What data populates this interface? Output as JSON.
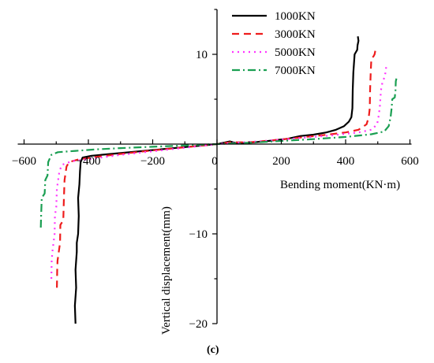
{
  "chart_data": {
    "type": "line",
    "title": "",
    "xlabel": "Bending moment(KN·m)",
    "ylabel": "Vertical displacement(mm)",
    "caption": "(c)",
    "xlim": [
      -600,
      600
    ],
    "ylim": [
      -20,
      15
    ],
    "xticks": [
      -600,
      -400,
      -200,
      0,
      200,
      400,
      600
    ],
    "yticks": [
      -20,
      -10,
      0,
      10
    ],
    "legend_position": "top-center",
    "series": [
      {
        "name": "1000KN",
        "color": "#000000",
        "dash": "",
        "points": [
          [
            -440,
            -20
          ],
          [
            -442,
            -18
          ],
          [
            -438,
            -16
          ],
          [
            -440,
            -14
          ],
          [
            -436,
            -12
          ],
          [
            -436,
            -11
          ],
          [
            -432,
            -10
          ],
          [
            -430,
            -8
          ],
          [
            -432,
            -6
          ],
          [
            -428,
            -4.5
          ],
          [
            -426,
            -3
          ],
          [
            -424,
            -2
          ],
          [
            -418,
            -1.5
          ],
          [
            -390,
            -1.3
          ],
          [
            -330,
            -1.1
          ],
          [
            -240,
            -0.8
          ],
          [
            -150,
            -0.5
          ],
          [
            -60,
            -0.2
          ],
          [
            0,
            0
          ],
          [
            20,
            0.15
          ],
          [
            40,
            0.3
          ],
          [
            60,
            0.1
          ],
          [
            100,
            0.15
          ],
          [
            160,
            0.35
          ],
          [
            220,
            0.6
          ],
          [
            260,
            0.9
          ],
          [
            300,
            1.05
          ],
          [
            340,
            1.3
          ],
          [
            370,
            1.6
          ],
          [
            395,
            2
          ],
          [
            410,
            2.5
          ],
          [
            418,
            3
          ],
          [
            421,
            4
          ],
          [
            422,
            6
          ],
          [
            424,
            8
          ],
          [
            428,
            10
          ],
          [
            436,
            10.5
          ],
          [
            437,
            11
          ],
          [
            440,
            11.5
          ],
          [
            438,
            12
          ]
        ]
      },
      {
        "name": "3000KN",
        "color": "#ee1c1c",
        "dash": "9,6",
        "points": [
          [
            -498,
            -16
          ],
          [
            -497,
            -14
          ],
          [
            -496,
            -13
          ],
          [
            -488,
            -11
          ],
          [
            -487,
            -9
          ],
          [
            -478,
            -8.5
          ],
          [
            -476,
            -6
          ],
          [
            -474,
            -4
          ],
          [
            -468,
            -2.5
          ],
          [
            -460,
            -2
          ],
          [
            -430,
            -1.7
          ],
          [
            -370,
            -1.4
          ],
          [
            -300,
            -1.1
          ],
          [
            -200,
            -0.7
          ],
          [
            -100,
            -0.35
          ],
          [
            0,
            0
          ],
          [
            40,
            0.2
          ],
          [
            100,
            0.2
          ],
          [
            180,
            0.45
          ],
          [
            250,
            0.7
          ],
          [
            330,
            1
          ],
          [
            400,
            1.3
          ],
          [
            440,
            1.6
          ],
          [
            465,
            2.2
          ],
          [
            472,
            3
          ],
          [
            475,
            4
          ],
          [
            476,
            6
          ],
          [
            478,
            8
          ],
          [
            480,
            9.5
          ],
          [
            487,
            9.8
          ],
          [
            490,
            10
          ],
          [
            494,
            10.7
          ]
        ]
      },
      {
        "name": "5000KN",
        "color": "#ff33ff",
        "dash": "2,5",
        "points": [
          [
            -515,
            -15
          ],
          [
            -514,
            -13
          ],
          [
            -512,
            -12
          ],
          [
            -505,
            -10
          ],
          [
            -504,
            -8
          ],
          [
            -500,
            -7
          ],
          [
            -498,
            -5
          ],
          [
            -494,
            -4
          ],
          [
            -490,
            -3
          ],
          [
            -482,
            -2.3
          ],
          [
            -450,
            -1.9
          ],
          [
            -380,
            -1.6
          ],
          [
            -300,
            -1.2
          ],
          [
            -200,
            -0.8
          ],
          [
            -100,
            -0.4
          ],
          [
            0,
            0
          ],
          [
            60,
            0.15
          ],
          [
            150,
            0.35
          ],
          [
            250,
            0.65
          ],
          [
            350,
            0.95
          ],
          [
            440,
            1.3
          ],
          [
            480,
            1.6
          ],
          [
            498,
            2.2
          ],
          [
            502,
            3
          ],
          [
            506,
            4
          ],
          [
            510,
            6
          ],
          [
            515,
            7
          ],
          [
            522,
            7.5
          ],
          [
            526,
            8.5
          ],
          [
            528,
            9
          ]
        ]
      },
      {
        "name": "7000KN",
        "color": "#1a9f52",
        "dash": "10,4,2,4",
        "points": [
          [
            -548,
            -9.3
          ],
          [
            -547,
            -8
          ],
          [
            -545,
            -6
          ],
          [
            -536,
            -5.5
          ],
          [
            -534,
            -4
          ],
          [
            -527,
            -3.5
          ],
          [
            -525,
            -2
          ],
          [
            -515,
            -1.2
          ],
          [
            -495,
            -0.9
          ],
          [
            -440,
            -0.75
          ],
          [
            -380,
            -0.6
          ],
          [
            -300,
            -0.45
          ],
          [
            -200,
            -0.3
          ],
          [
            -100,
            -0.15
          ],
          [
            0,
            0
          ],
          [
            100,
            0.15
          ],
          [
            200,
            0.35
          ],
          [
            300,
            0.55
          ],
          [
            400,
            0.8
          ],
          [
            480,
            1.1
          ],
          [
            520,
            1.4
          ],
          [
            534,
            2
          ],
          [
            540,
            3
          ],
          [
            543,
            4
          ],
          [
            545,
            5
          ],
          [
            553,
            5.2
          ],
          [
            555,
            6
          ],
          [
            556,
            7
          ],
          [
            558,
            7.3
          ]
        ]
      }
    ]
  }
}
